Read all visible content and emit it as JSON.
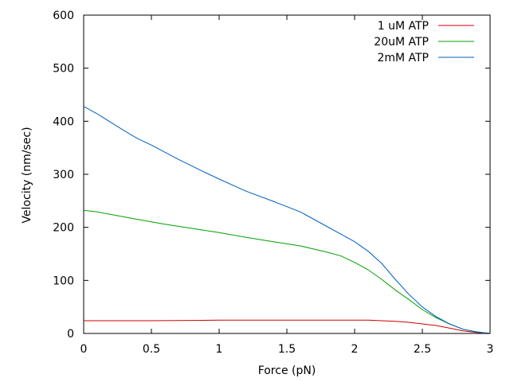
{
  "chart_data": {
    "type": "line",
    "title": "",
    "xlabel": "Force (pN)",
    "ylabel": "Velocity (nm/sec)",
    "xlim": [
      0,
      3
    ],
    "ylim": [
      0,
      600
    ],
    "xticks": [
      0,
      0.5,
      1,
      1.5,
      2,
      2.5,
      3
    ],
    "xtick_labels": [
      "0",
      "0.5",
      "1",
      "1.5",
      "2",
      "2.5",
      "3"
    ],
    "yticks": [
      0,
      100,
      200,
      300,
      400,
      500,
      600
    ],
    "ytick_labels": [
      "0",
      "100",
      "200",
      "300",
      "400",
      "500",
      "600"
    ],
    "grid": false,
    "legend_position": "top-right",
    "series": [
      {
        "name": "1 uM ATP",
        "color": "#cc0000",
        "x": [
          0,
          0.5,
          1,
          1.5,
          1.8,
          2.0,
          2.1,
          2.2,
          2.3,
          2.4,
          2.5,
          2.6,
          2.7,
          2.8,
          2.9,
          3.0
        ],
        "y": [
          24,
          24,
          25,
          25,
          25,
          25,
          25,
          24,
          23,
          21,
          18,
          15,
          10,
          5,
          2,
          0
        ]
      },
      {
        "name": "20uM ATP",
        "color": "#00a000",
        "x": [
          0,
          0.1,
          0.25,
          0.4,
          0.6,
          0.8,
          1.0,
          1.2,
          1.4,
          1.6,
          1.8,
          1.9,
          2.0,
          2.1,
          2.2,
          2.3,
          2.4,
          2.5,
          2.6,
          2.7,
          2.8,
          2.9,
          3.0
        ],
        "y": [
          232,
          229,
          222,
          215,
          206,
          198,
          190,
          181,
          173,
          165,
          153,
          146,
          134,
          120,
          102,
          82,
          64,
          45,
          30,
          18,
          8,
          3,
          0
        ]
      },
      {
        "name": "2mM ATP",
        "color": "#0060c0",
        "x": [
          0,
          0.1,
          0.2,
          0.3,
          0.4,
          0.5,
          0.7,
          0.9,
          1.0,
          1.2,
          1.4,
          1.6,
          1.8,
          1.9,
          2.0,
          2.1,
          2.2,
          2.3,
          2.4,
          2.5,
          2.6,
          2.7,
          2.8,
          2.9,
          3.0
        ],
        "y": [
          428,
          414,
          398,
          382,
          367,
          355,
          328,
          303,
          291,
          268,
          249,
          229,
          201,
          187,
          173,
          155,
          132,
          102,
          74,
          50,
          32,
          18,
          8,
          3,
          0
        ]
      }
    ]
  }
}
